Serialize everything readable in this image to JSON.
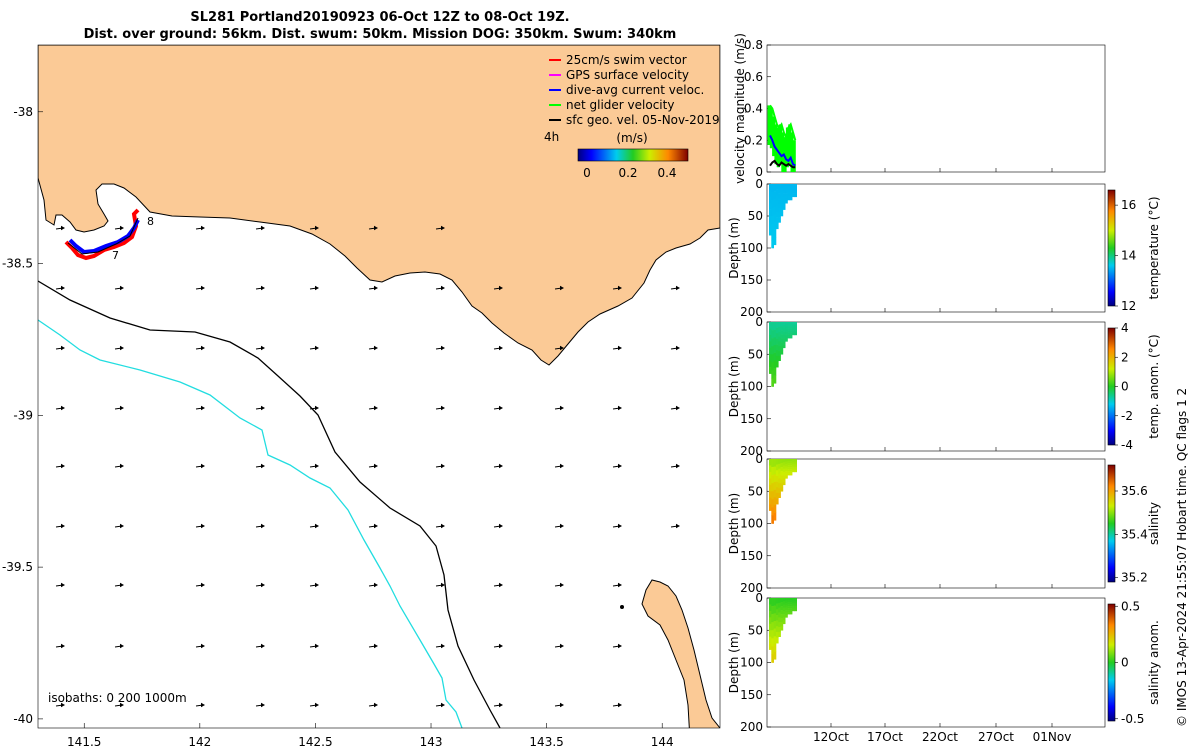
{
  "title": {
    "line1": "SL281 Portland20190923 06-Oct 12Z to 08-Oct 19Z.",
    "line2": "Dist. over ground: 56km. Dist. swum: 50km. Mission DOG: 350km. Swum: 340km"
  },
  "map": {
    "lon_ticks": [
      "141.5",
      "142",
      "142.5",
      "143",
      "143.5",
      "144"
    ],
    "lat_ticks": [
      "-38",
      "-38.5",
      "-39",
      "-39.5",
      "-40"
    ],
    "lon_range": [
      141.3,
      144.25
    ],
    "lat_range": [
      -40.03,
      -37.78
    ],
    "isobaths_label": "isobaths: 0   200  1000m",
    "track_labels": [
      "8",
      "7"
    ],
    "colorbar_label": "(m/s)",
    "colorbar_ticks": [
      "0",
      "0.2",
      "0.4"
    ],
    "time_label": "4h",
    "legend": [
      {
        "label": "25cm/s swim vector",
        "color": "#ff0000"
      },
      {
        "label": "GPS surface velocity",
        "color": "#ff00ff"
      },
      {
        "label": "dive-avg current veloc.",
        "color": "#0000ff"
      },
      {
        "label": "net glider velocity",
        "color": "#00ff00"
      },
      {
        "label": "sfc geo. vel. 05-Nov-2019",
        "color": "#000000"
      }
    ],
    "colors": {
      "land": "#fbca96",
      "isobath_200": "#000000",
      "isobath_1000": "#22dde0",
      "track": "#ff0000",
      "dive_avg": "#0000ff"
    }
  },
  "chart_data": [
    {
      "type": "line",
      "ylabel": "velocity magnitude (m/s)",
      "ylim": [
        0,
        0.8
      ],
      "yticks": [
        "0",
        "0.2",
        "0.4",
        "0.6",
        "0.8"
      ],
      "series": [
        {
          "name": "net glider velocity",
          "color": "#00ff00",
          "values": [
            0.42,
            0.4,
            0.35,
            0.3,
            0.28,
            0.3,
            0.25,
            0.22,
            0.28,
            0.3,
            0.25,
            0.2
          ]
        },
        {
          "name": "dive-avg current veloc.",
          "color": "#0000ff",
          "values": [
            0.23,
            0.2,
            0.16,
            0.14,
            0.12,
            0.1,
            0.11,
            0.08,
            0.07,
            0.09,
            0.05,
            0.04
          ]
        },
        {
          "name": "sfc geo. vel.",
          "color": "#000000",
          "values": [
            0.04,
            0.06,
            0.07,
            0.05,
            0.04,
            0.06,
            0.05,
            0.04,
            0.05,
            0.04,
            0.03,
            0.03
          ]
        }
      ]
    },
    {
      "type": "heatmap",
      "ylabel": "Depth (m)",
      "colorbar_label": "temperature (°C)",
      "colorbar_ticks": [
        "12",
        "14",
        "16"
      ],
      "crange": [
        12,
        16.6
      ],
      "depth_ticks": [
        "0",
        "50",
        "100",
        "150",
        "200"
      ],
      "surface_value": 13.5,
      "deep_value": 13.6,
      "max_depth": [
        80,
        100,
        95,
        70,
        60,
        50,
        40,
        30,
        25,
        25,
        20,
        20
      ]
    },
    {
      "type": "heatmap",
      "ylabel": "Depth (m)",
      "colorbar_label": "temp. anom. (°C)",
      "colorbar_ticks": [
        "4",
        "2",
        "0",
        "-2",
        "-4"
      ],
      "crange": [
        -4,
        4
      ],
      "depth_ticks": [
        "0",
        "50",
        "100",
        "150",
        "200"
      ],
      "surface_value": -0.7,
      "deep_value": 0.4,
      "max_depth": [
        80,
        100,
        95,
        70,
        60,
        50,
        40,
        30,
        25,
        25,
        20,
        20
      ]
    },
    {
      "type": "heatmap",
      "ylabel": "Depth (m)",
      "colorbar_label": "salinity",
      "colorbar_ticks": [
        "35.6",
        "35.4",
        "35.2"
      ],
      "crange": [
        35.18,
        35.72
      ],
      "depth_ticks": [
        "0",
        "50",
        "100",
        "150",
        "200"
      ],
      "surface_value": 35.5,
      "deep_value": 35.64,
      "max_depth": [
        80,
        100,
        95,
        70,
        60,
        50,
        40,
        30,
        25,
        25,
        20,
        20
      ]
    },
    {
      "type": "heatmap",
      "ylabel": "Depth (m)",
      "colorbar_label": "salinity anom.",
      "colorbar_ticks": [
        "0.5",
        "0",
        "-0.5"
      ],
      "crange": [
        -0.52,
        0.52
      ],
      "depth_ticks": [
        "0",
        "50",
        "100",
        "150",
        "200"
      ],
      "surface_value": 0.0,
      "deep_value": 0.23,
      "max_depth": [
        80,
        100,
        95,
        70,
        60,
        50,
        40,
        30,
        25,
        25,
        20,
        20
      ]
    }
  ],
  "time_axis": {
    "ticks": [
      "12Oct",
      "17Oct",
      "22Oct",
      "27Oct",
      "01Nov"
    ]
  },
  "footer": "© IMOS 13-Apr-2024 21:55:07 Hobart time. QC flags 1  2"
}
